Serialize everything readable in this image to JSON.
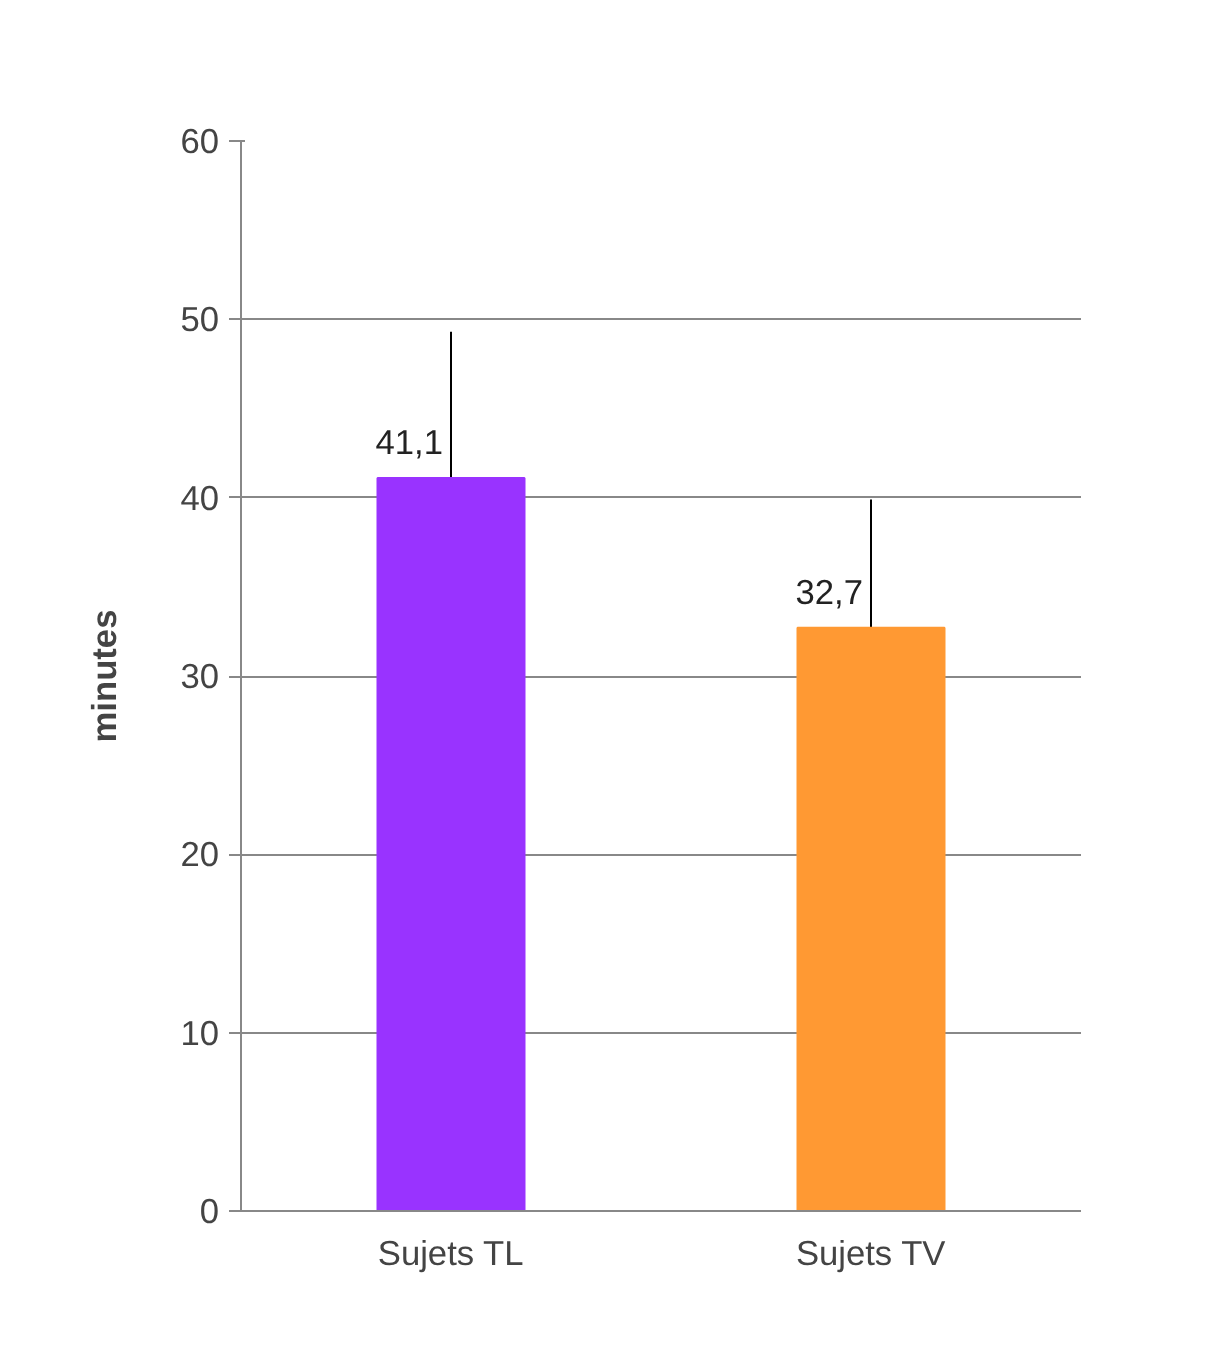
{
  "chart_data": {
    "type": "bar",
    "ylabel": "minutes",
    "categories": [
      "Sujets TL",
      "Sujets TV"
    ],
    "values": [
      41.1,
      32.7
    ],
    "colors": [
      "#9933ff",
      "#ff9933"
    ],
    "errors": [
      8.2,
      7.2
    ],
    "value_labels": [
      "41,1",
      "32,7"
    ],
    "ylim": [
      0,
      60
    ],
    "yticks": [
      0,
      10,
      20,
      30,
      40,
      50,
      60
    ],
    "grid": "y"
  }
}
